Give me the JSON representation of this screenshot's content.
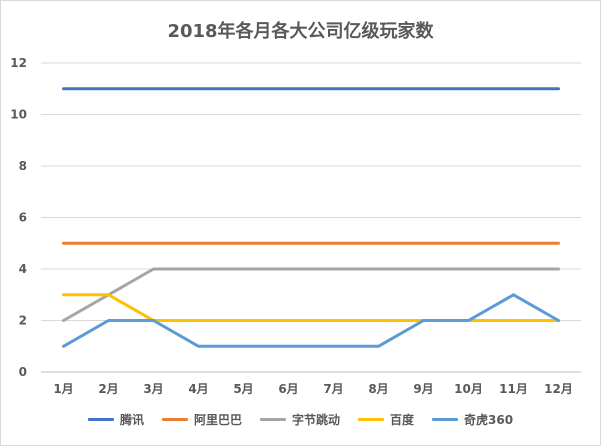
{
  "chart_data": {
    "type": "line",
    "title": "2018年各月各大公司亿级玩家数",
    "xlabel": "",
    "ylabel": "",
    "categories": [
      "1月",
      "2月",
      "3月",
      "4月",
      "5月",
      "6月",
      "7月",
      "8月",
      "9月",
      "10月",
      "11月",
      "12月"
    ],
    "ylim": [
      0,
      12
    ],
    "yticks": [
      0,
      2,
      4,
      6,
      8,
      10,
      12
    ],
    "grid": true,
    "legend_position": "bottom",
    "series": [
      {
        "name": "腾讯",
        "color": "#4472c4",
        "values": [
          11,
          11,
          11,
          11,
          11,
          11,
          11,
          11,
          11,
          11,
          11,
          11
        ]
      },
      {
        "name": "阿里巴巴",
        "color": "#ed7d31",
        "values": [
          5,
          5,
          5,
          5,
          5,
          5,
          5,
          5,
          5,
          5,
          5,
          5
        ]
      },
      {
        "name": "字节跳动",
        "color": "#a5a5a5",
        "values": [
          2,
          3,
          4,
          4,
          4,
          4,
          4,
          4,
          4,
          4,
          4,
          4
        ]
      },
      {
        "name": "百度",
        "color": "#ffc000",
        "values": [
          3,
          3,
          2,
          2,
          2,
          2,
          2,
          2,
          2,
          2,
          2,
          2
        ]
      },
      {
        "name": "奇虎360",
        "color": "#5b9bd5",
        "values": [
          1,
          2,
          2,
          1,
          1,
          1,
          1,
          1,
          2,
          2,
          3,
          2
        ]
      }
    ]
  }
}
